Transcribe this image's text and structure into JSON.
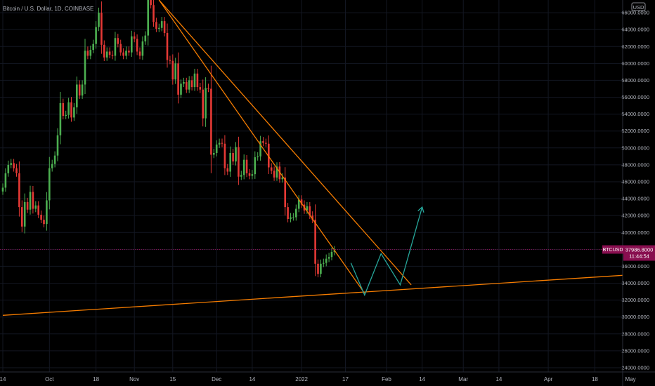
{
  "header": {
    "symbol_title": "Bitcoin / U.S. Dollar, 1D, COINBASE",
    "currency": "USD"
  },
  "price_tag": {
    "symbol": "BTCUSD",
    "price": "37986.8000",
    "countdown": "11:44:54",
    "price_value": 37986.8,
    "color": "#880e4f"
  },
  "colors": {
    "up": "#26a69a",
    "up_body": "#4caf50",
    "down": "#e53935",
    "trendline": "#f57c00",
    "projection": "#26a69a",
    "grid": "#131722",
    "text": "#b2b5be"
  },
  "chart_data": {
    "type": "candlestick",
    "yaxis": {
      "ticks": [
        24000,
        26000,
        28000,
        30000,
        32000,
        34000,
        36000,
        38000,
        40000,
        42000,
        44000,
        46000,
        48000,
        50000,
        52000,
        54000,
        56000,
        58000,
        60000,
        62000,
        64000,
        66000
      ],
      "tick_labels": [
        "24000.0000",
        "26000.0000",
        "28000.0000",
        "30000.0000",
        "32000.0000",
        "34000.0000",
        "36000.0000",
        "38000.0000",
        "40000.0000",
        "42000.0000",
        "44000.0000",
        "46000.0000",
        "48000.0000",
        "50000.0000",
        "52000.0000",
        "54000.0000",
        "56000.0000",
        "58000.0000",
        "60000.0000",
        "62000.0000",
        "64000.0000",
        "66000.0000"
      ],
      "range": [
        23500,
        67500
      ]
    },
    "xaxis": {
      "start_date": "2021-09-14",
      "labels": [
        {
          "text": "14",
          "date": "2021-09-14"
        },
        {
          "text": "Oct",
          "date": "2021-10-01"
        },
        {
          "text": "18",
          "date": "2021-10-18"
        },
        {
          "text": "Nov",
          "date": "2021-11-01"
        },
        {
          "text": "15",
          "date": "2021-11-15"
        },
        {
          "text": "Dec",
          "date": "2021-12-01"
        },
        {
          "text": "14",
          "date": "2021-12-14"
        },
        {
          "text": "2022",
          "date": "2022-01-01"
        },
        {
          "text": "17",
          "date": "2022-01-17"
        },
        {
          "text": "Feb",
          "date": "2022-02-01"
        },
        {
          "text": "14",
          "date": "2022-02-14"
        },
        {
          "text": "Mar",
          "date": "2022-03-01"
        },
        {
          "text": "14",
          "date": "2022-03-14"
        },
        {
          "text": "Apr",
          "date": "2022-04-01"
        },
        {
          "text": "18",
          "date": "2022-04-18"
        },
        {
          "text": "May",
          "date": "2022-05-01"
        }
      ]
    },
    "closes": [
      45300,
      47000,
      48000,
      48200,
      47600,
      47000,
      43000,
      40700,
      43600,
      42700,
      44800,
      42800,
      43200,
      42100,
      41500,
      41000,
      43800,
      47600,
      48100,
      49100,
      51500,
      55300,
      53800,
      53900,
      55400,
      53600,
      54800,
      57500,
      56200,
      57500,
      61500,
      60900,
      61600,
      62300,
      64300,
      66000,
      62200,
      60700,
      61400,
      61000,
      60900,
      63000,
      62300,
      61300,
      60900,
      61500,
      61300,
      63200,
      62900,
      61400,
      60900,
      62600,
      63300,
      67500,
      66900,
      64900,
      64100,
      64200,
      65000,
      63600,
      60400,
      60300,
      58100,
      60000,
      56300,
      57600,
      57800,
      56900,
      58000,
      57200,
      58800,
      57200,
      56900,
      53500,
      57100,
      57000,
      49200,
      49400,
      50400,
      50600,
      50500,
      47600,
      47200,
      49400,
      48400,
      50100,
      46600,
      46800,
      48600,
      47000,
      46700,
      46900,
      48900,
      49000,
      50800,
      50600,
      50500,
      47700,
      47300,
      46500,
      47800,
      46300,
      46500,
      43000,
      41600,
      41800,
      41800,
      42800,
      43900,
      43300,
      42600,
      43100,
      42000,
      41500,
      36300,
      35100,
      36300,
      36400,
      36900,
      37100,
      37700,
      37900
    ],
    "trendlines": [
      {
        "name": "upper-resistance",
        "from": {
          "date": "2021-11-10",
          "price": 67500
        },
        "to": {
          "date": "2022-02-10",
          "price": 33800
        }
      },
      {
        "name": "lower-channel",
        "from": {
          "date": "2021-11-10",
          "price": 67500
        },
        "to": {
          "date": "2022-01-24",
          "price": 32800
        }
      },
      {
        "name": "long-term-support",
        "from": {
          "date": "2021-09-14",
          "price": 30200
        },
        "to": {
          "date": "2022-05-11",
          "price": 35200
        }
      }
    ],
    "projection": [
      {
        "date": "2022-01-19",
        "price": 36400
      },
      {
        "date": "2022-01-24",
        "price": 32600
      },
      {
        "date": "2022-01-30",
        "price": 37500
      },
      {
        "date": "2022-02-06",
        "price": 33800
      },
      {
        "date": "2022-02-14",
        "price": 43000
      }
    ]
  }
}
